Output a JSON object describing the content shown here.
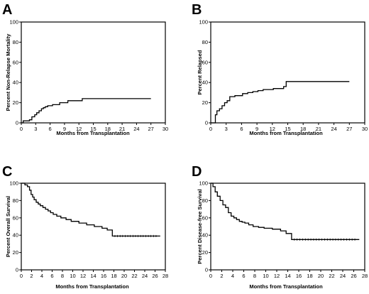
{
  "chart_data": [
    {
      "type": "line",
      "panel_label": "A",
      "xlabel": "Months from Transplantation",
      "ylabel": "Percent Non-Relapse Mortality",
      "xlim": [
        0,
        30
      ],
      "ylim": [
        0,
        100
      ],
      "xticks": [
        0,
        3,
        6,
        9,
        12,
        15,
        18,
        21,
        24,
        27,
        30
      ],
      "yticks": [
        0,
        20,
        40,
        60,
        80,
        100
      ],
      "grid": false,
      "series": [
        {
          "x": [
            0,
            0.4,
            1.7,
            2.2,
            2.8,
            3.2,
            3.7,
            4.2,
            4.6,
            5.0,
            5.5,
            6.5,
            8.0,
            9.7,
            12.7,
            27
          ],
          "y": [
            0,
            2,
            3,
            6,
            8,
            10,
            12,
            14,
            15,
            16,
            17,
            18,
            20,
            22,
            24,
            24
          ]
        }
      ]
    },
    {
      "type": "line",
      "panel_label": "B",
      "xlabel": "Months from Transplantation",
      "ylabel": "Percent Relapsed",
      "xlim": [
        0,
        30
      ],
      "ylim": [
        0,
        100
      ],
      "xticks": [
        0,
        3,
        6,
        9,
        12,
        15,
        18,
        21,
        24,
        27,
        30
      ],
      "yticks": [
        0,
        20,
        40,
        60,
        80,
        100
      ],
      "grid": false,
      "series": [
        {
          "x": [
            0,
            0.9,
            1.2,
            1.7,
            2.2,
            2.7,
            3.2,
            3.7,
            4.7,
            6.2,
            7.2,
            8.2,
            9.2,
            10.2,
            12.2,
            14.2,
            14.7,
            27
          ],
          "y": [
            0,
            8,
            12,
            14,
            17,
            20,
            22,
            26,
            27,
            29,
            30,
            31,
            32,
            33,
            34,
            36,
            41,
            41
          ]
        }
      ]
    },
    {
      "type": "line",
      "panel_label": "C",
      "xlabel": "Months from Transplantation",
      "ylabel": "Percent Overall Survival",
      "xlim": [
        0,
        28
      ],
      "ylim": [
        0,
        100
      ],
      "xticks": [
        0,
        2,
        4,
        6,
        8,
        10,
        12,
        14,
        16,
        18,
        20,
        22,
        24,
        26,
        28
      ],
      "yticks": [
        0,
        20,
        40,
        60,
        80,
        100
      ],
      "grid": false,
      "series": [
        {
          "x": [
            0,
            0.7,
            1.2,
            1.6,
            1.9,
            2.2,
            2.5,
            2.9,
            3.3,
            3.7,
            4.2,
            4.7,
            5.2,
            5.7,
            6.2,
            6.9,
            7.7,
            8.7,
            9.7,
            11.2,
            12.7,
            14.2,
            15.7,
            16.7,
            17.7,
            27
          ],
          "y": [
            100,
            98,
            96,
            92,
            87,
            84,
            81,
            78,
            76,
            74,
            72,
            70,
            68,
            66,
            64,
            62,
            60,
            58,
            56,
            54,
            52,
            50,
            48,
            46,
            39,
            39
          ]
        }
      ]
    },
    {
      "type": "line",
      "panel_label": "D",
      "xlabel": "Months from Transplantation",
      "ylabel": "Percent Disease-free Survival",
      "xlim": [
        0,
        28
      ],
      "ylim": [
        0,
        100
      ],
      "xticks": [
        0,
        2,
        4,
        6,
        8,
        10,
        12,
        14,
        16,
        18,
        20,
        22,
        24,
        26,
        28
      ],
      "yticks": [
        0,
        20,
        40,
        60,
        80,
        100
      ],
      "grid": false,
      "series": [
        {
          "x": [
            0,
            0.4,
            0.8,
            1.2,
            1.7,
            2.2,
            2.7,
            3.2,
            3.7,
            4.2,
            4.7,
            5.2,
            5.7,
            6.2,
            6.9,
            7.7,
            8.7,
            9.7,
            11.2,
            12.7,
            13.7,
            14.7,
            27
          ],
          "y": [
            100,
            96,
            90,
            85,
            80,
            75,
            72,
            66,
            62,
            60,
            58,
            56,
            55,
            54,
            52,
            50,
            49,
            48,
            47,
            45,
            42,
            35,
            35
          ]
        }
      ]
    }
  ]
}
